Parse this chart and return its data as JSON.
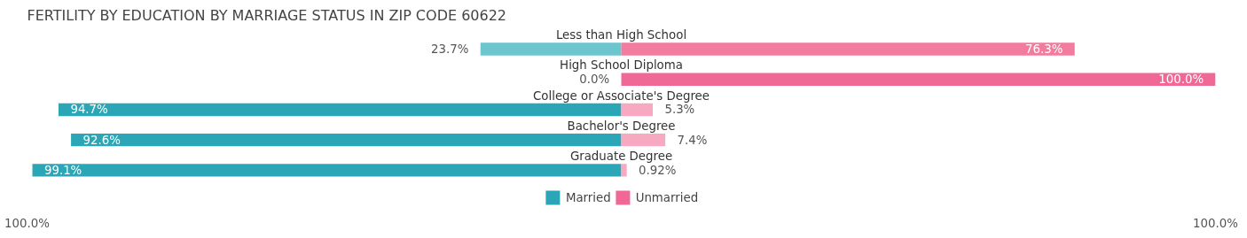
{
  "chart_data": {
    "type": "bar",
    "orientation": "horizontal",
    "title": "FERTILITY BY EDUCATION BY MARRIAGE STATUS IN ZIP CODE 60622",
    "categories": [
      "Less than High School",
      "High School Diploma",
      "College or Associate's Degree",
      "Bachelor's Degree",
      "Graduate Degree"
    ],
    "series": [
      {
        "name": "Married",
        "color": "#2aa6b6",
        "colors": [
          "#6cc5cf",
          "#8fd3da",
          "#2aa6b6",
          "#2aa6b6",
          "#2aa6b6"
        ],
        "values": [
          23.7,
          0.0,
          94.7,
          92.6,
          99.1
        ],
        "base": [
          -23.7,
          null,
          -94.7,
          -92.6,
          -99.1
        ],
        "value_labels": [
          "23.7%",
          "0.0%",
          "94.7%",
          "92.6%",
          "99.1%"
        ]
      },
      {
        "name": "Unmarried",
        "color": "#f06895",
        "colors": [
          "#f27ba0",
          "#f06895",
          "#f7a9c2",
          "#f7a9c2",
          "#f7a9c2"
        ],
        "values": [
          76.3,
          100.0,
          5.3,
          7.4,
          0.92
        ],
        "value_labels": [
          "76.3%",
          "100.0%",
          "5.3%",
          "7.4%",
          "0.92%"
        ]
      }
    ],
    "xlim": [
      -100,
      100
    ],
    "xticks": [
      {
        "value": -100,
        "label": "100.0%"
      },
      {
        "value": 100,
        "label": "100.0%"
      }
    ],
    "legend": "bottom"
  }
}
